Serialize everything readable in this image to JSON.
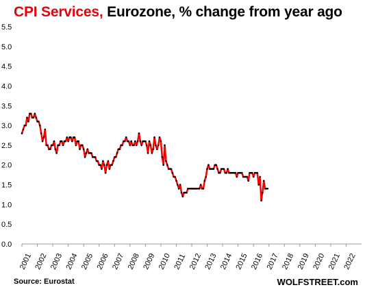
{
  "title": {
    "highlight": "CPI Services,",
    "rest": " Eurozone, % change from year ago"
  },
  "source": "Source: Eurostat",
  "brand": "WOLFSTREET.com",
  "colors": {
    "line": "#ff0000",
    "marker": "#000000",
    "highlight": "#e8000b"
  },
  "chart_data": {
    "type": "line",
    "title": "CPI Services, Eurozone, % change from year ago",
    "xlabel": "",
    "ylabel": "",
    "ylim": [
      0,
      5.5
    ],
    "yticks": [
      0.0,
      0.5,
      1.0,
      1.5,
      2.0,
      2.5,
      3.0,
      3.5,
      4.0,
      4.5,
      5.0,
      5.5
    ],
    "xticks": [
      "2001",
      "2002",
      "2003",
      "2004",
      "2005",
      "2006",
      "2007",
      "2008",
      "2009",
      "2010",
      "2011",
      "2012",
      "2013",
      "2014",
      "2015",
      "2016",
      "2017",
      "2018",
      "2019",
      "2020",
      "2021",
      "2022"
    ],
    "grid": false,
    "legend": "none",
    "series": [
      {
        "start": "2001-01",
        "frequency": "monthly",
        "values": [
          2.8,
          2.9,
          3.0,
          3.0,
          3.2,
          3.1,
          3.3,
          3.3,
          3.2,
          3.2,
          3.3,
          3.2,
          3.1,
          3.1,
          3.0,
          2.8,
          2.6,
          2.7,
          2.9,
          2.5,
          2.5,
          2.4,
          2.4,
          2.5,
          2.5,
          2.6,
          2.4,
          2.3,
          2.5,
          2.5,
          2.6,
          2.6,
          2.5,
          2.6,
          2.6,
          2.7,
          2.6,
          2.7,
          2.7,
          2.6,
          2.7,
          2.7,
          2.5,
          2.6,
          2.6,
          2.4,
          2.5,
          2.5,
          2.4,
          2.2,
          2.3,
          2.4,
          2.3,
          2.3,
          2.3,
          2.2,
          2.2,
          2.2,
          2.1,
          2.1,
          2.0,
          2.0,
          1.9,
          2.1,
          2.0,
          1.8,
          2.0,
          2.1,
          1.9,
          2.0,
          2.0,
          2.1,
          2.2,
          2.2,
          2.3,
          2.4,
          2.4,
          2.5,
          2.5,
          2.6,
          2.6,
          2.7,
          2.6,
          2.6,
          2.5,
          2.6,
          2.5,
          2.5,
          2.6,
          2.5,
          2.6,
          2.8,
          2.6,
          2.5,
          2.6,
          2.6,
          2.6,
          2.5,
          2.3,
          2.6,
          2.5,
          2.3,
          2.4,
          2.7,
          2.5,
          2.4,
          2.5,
          2.7,
          2.6,
          2.2,
          2.0,
          2.5,
          2.1,
          2.0,
          1.9,
          1.9,
          1.9,
          1.8,
          1.7,
          1.7,
          1.6,
          1.5,
          1.4,
          1.5,
          1.3,
          1.2,
          1.3,
          1.3,
          1.3,
          1.4,
          1.4,
          1.4,
          1.4,
          1.4,
          1.4,
          1.4,
          1.4,
          1.4,
          1.4,
          1.5,
          1.4,
          1.4,
          1.6,
          1.7,
          1.9,
          2.0,
          1.9,
          1.9,
          1.9,
          1.9,
          2.0,
          2.0,
          1.9,
          1.8,
          1.8,
          1.9,
          1.9,
          1.9,
          1.8,
          1.8,
          1.9,
          1.8,
          1.8,
          1.8,
          1.8,
          1.8,
          1.8,
          1.7,
          1.8,
          1.8,
          1.8,
          1.8,
          1.7,
          1.7,
          1.7,
          1.7,
          1.6,
          1.8,
          1.8,
          1.8,
          1.7,
          1.8,
          1.8,
          1.8,
          1.5,
          1.7,
          1.1,
          1.3,
          1.6,
          1.4,
          1.4,
          1.4
        ]
      }
    ]
  }
}
